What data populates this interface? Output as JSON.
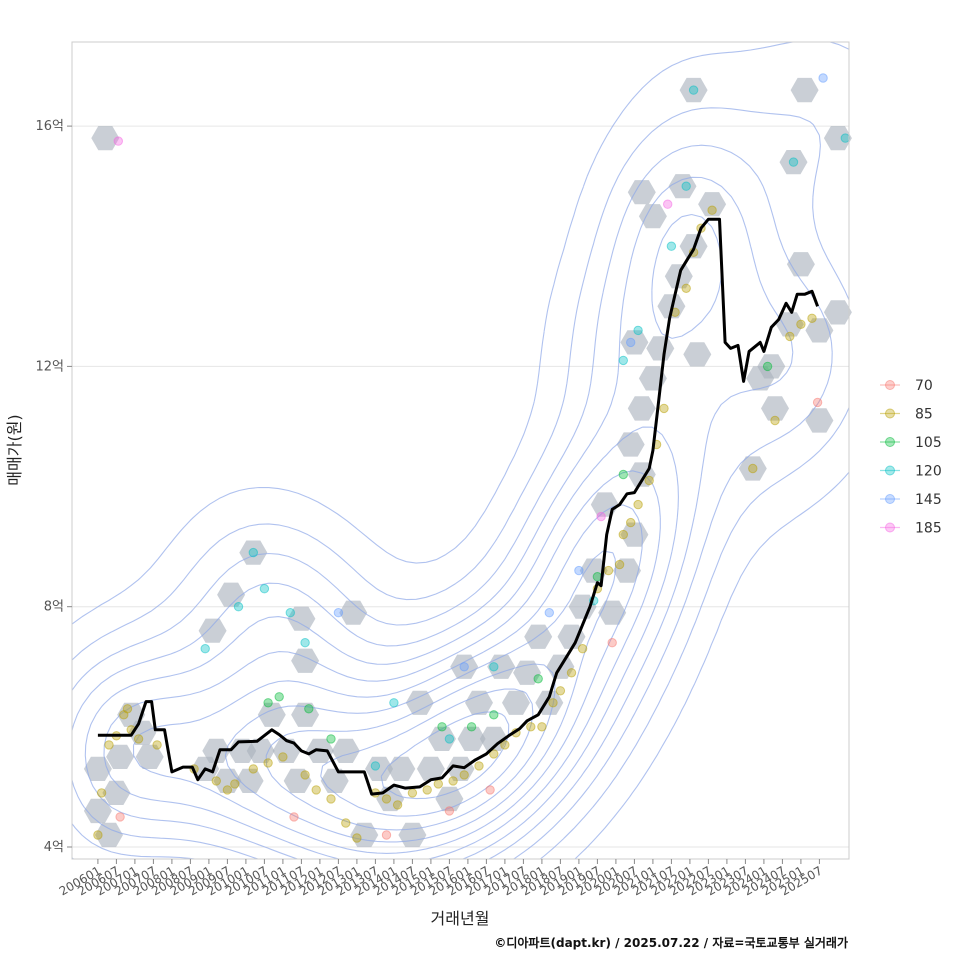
{
  "chart_data": {
    "type": "scatter",
    "xlabel": "거래년월",
    "ylabel": "매매가(원)",
    "caption": "©디아파트(dapt.kr) / 2025.07.22 / 자료=국토교통부 실거래가",
    "y_unit": "억",
    "ylim": [
      3.8,
      17.4
    ],
    "xlim": [
      2005.3,
      2026.3
    ],
    "y_ticks": [
      {
        "value": 4,
        "label": "4억"
      },
      {
        "value": 8,
        "label": "8억"
      },
      {
        "value": 12,
        "label": "12억"
      },
      {
        "value": 16,
        "label": "16억"
      }
    ],
    "x_ticks": [
      "200601",
      "200607",
      "200701",
      "200707",
      "200801",
      "200807",
      "200901",
      "200907",
      "201001",
      "201007",
      "201101",
      "201107",
      "201201",
      "201207",
      "201301",
      "201307",
      "201401",
      "201407",
      "201501",
      "201507",
      "201601",
      "201607",
      "201701",
      "201707",
      "201801",
      "201807",
      "201901",
      "201907",
      "202001",
      "202007",
      "202101",
      "202107",
      "202201",
      "202207",
      "202301",
      "202307",
      "202401",
      "202407",
      "202501",
      "202507"
    ],
    "legend": {
      "position": "right",
      "title": "",
      "entries": [
        {
          "label": "70",
          "color": "#f8766d"
        },
        {
          "label": "85",
          "color": "#b79f00"
        },
        {
          "label": "105",
          "color": "#00ba38"
        },
        {
          "label": "120",
          "color": "#00bfc4"
        },
        {
          "label": "145",
          "color": "#619cff"
        },
        {
          "label": "185",
          "color": "#f564e3"
        }
      ]
    },
    "trend_line": {
      "name": "moving average",
      "color": "#000000",
      "points": [
        [
          2006.0,
          5.86
        ],
        [
          2006.3,
          5.86
        ],
        [
          2006.7,
          5.86
        ],
        [
          2006.9,
          5.86
        ],
        [
          2007.1,
          6.05
        ],
        [
          2007.3,
          6.42
        ],
        [
          2007.45,
          6.42
        ],
        [
          2007.55,
          5.95
        ],
        [
          2007.8,
          5.95
        ],
        [
          2008.0,
          5.25
        ],
        [
          2008.3,
          5.33
        ],
        [
          2008.55,
          5.33
        ],
        [
          2008.7,
          5.12
        ],
        [
          2008.9,
          5.3
        ],
        [
          2009.1,
          5.25
        ],
        [
          2009.3,
          5.62
        ],
        [
          2009.6,
          5.62
        ],
        [
          2009.8,
          5.75
        ],
        [
          2010.3,
          5.76
        ],
        [
          2010.7,
          5.95
        ],
        [
          2010.9,
          5.87
        ],
        [
          2011.1,
          5.77
        ],
        [
          2011.3,
          5.73
        ],
        [
          2011.5,
          5.6
        ],
        [
          2011.7,
          5.55
        ],
        [
          2011.9,
          5.62
        ],
        [
          2012.2,
          5.6
        ],
        [
          2012.5,
          5.25
        ],
        [
          2013.2,
          5.25
        ],
        [
          2013.4,
          4.88
        ],
        [
          2013.7,
          4.9
        ],
        [
          2014.0,
          5.03
        ],
        [
          2014.3,
          4.98
        ],
        [
          2014.7,
          5.0
        ],
        [
          2015.0,
          5.12
        ],
        [
          2015.3,
          5.15
        ],
        [
          2015.6,
          5.35
        ],
        [
          2015.9,
          5.32
        ],
        [
          2016.2,
          5.45
        ],
        [
          2016.5,
          5.55
        ],
        [
          2016.8,
          5.72
        ],
        [
          2017.1,
          5.85
        ],
        [
          2017.4,
          5.97
        ],
        [
          2017.6,
          6.1
        ],
        [
          2017.9,
          6.2
        ],
        [
          2018.2,
          6.5
        ],
        [
          2018.4,
          6.9
        ],
        [
          2018.7,
          7.2
        ],
        [
          2018.9,
          7.4
        ],
        [
          2019.1,
          7.7
        ],
        [
          2019.3,
          8.0
        ],
        [
          2019.5,
          8.4
        ],
        [
          2019.6,
          8.35
        ],
        [
          2019.75,
          9.2
        ],
        [
          2019.9,
          9.62
        ],
        [
          2020.1,
          9.7
        ],
        [
          2020.3,
          9.88
        ],
        [
          2020.5,
          9.9
        ],
        [
          2020.7,
          10.1
        ],
        [
          2020.9,
          10.3
        ],
        [
          2021.0,
          10.6
        ],
        [
          2021.15,
          11.4
        ],
        [
          2021.3,
          12.2
        ],
        [
          2021.45,
          12.8
        ],
        [
          2021.6,
          13.2
        ],
        [
          2021.75,
          13.6
        ],
        [
          2021.9,
          13.75
        ],
        [
          2022.1,
          13.95
        ],
        [
          2022.3,
          14.3
        ],
        [
          2022.5,
          14.45
        ],
        [
          2022.8,
          14.45
        ],
        [
          2022.95,
          12.4
        ],
        [
          2023.1,
          12.3
        ],
        [
          2023.3,
          12.35
        ],
        [
          2023.45,
          11.75
        ],
        [
          2023.6,
          12.25
        ],
        [
          2023.9,
          12.4
        ],
        [
          2024.0,
          12.25
        ],
        [
          2024.2,
          12.65
        ],
        [
          2024.4,
          12.78
        ],
        [
          2024.6,
          13.05
        ],
        [
          2024.75,
          12.9
        ],
        [
          2024.9,
          13.2
        ],
        [
          2025.1,
          13.2
        ],
        [
          2025.3,
          13.25
        ],
        [
          2025.45,
          13.0
        ]
      ]
    },
    "series": [
      {
        "name": "70",
        "points": [
          [
            2006.6,
            4.5
          ],
          [
            2011.3,
            4.5
          ],
          [
            2013.8,
            4.2
          ],
          [
            2015.5,
            4.6
          ],
          [
            2016.6,
            4.95
          ],
          [
            2019.9,
            7.4
          ],
          [
            2025.45,
            11.4
          ]
        ]
      },
      {
        "name": "85",
        "points": [
          [
            2006.0,
            4.2
          ],
          [
            2006.1,
            4.9
          ],
          [
            2006.3,
            5.7
          ],
          [
            2006.5,
            5.85
          ],
          [
            2006.7,
            6.2
          ],
          [
            2006.8,
            6.3
          ],
          [
            2006.9,
            5.95
          ],
          [
            2007.1,
            5.8
          ],
          [
            2007.6,
            5.7
          ],
          [
            2008.6,
            5.3
          ],
          [
            2009.2,
            5.1
          ],
          [
            2009.5,
            4.95
          ],
          [
            2009.7,
            5.05
          ],
          [
            2010.2,
            5.3
          ],
          [
            2010.6,
            5.4
          ],
          [
            2011.0,
            5.5
          ],
          [
            2011.6,
            5.2
          ],
          [
            2011.9,
            4.95
          ],
          [
            2012.3,
            4.8
          ],
          [
            2012.7,
            4.4
          ],
          [
            2013.0,
            4.15
          ],
          [
            2013.5,
            4.9
          ],
          [
            2013.8,
            4.8
          ],
          [
            2014.1,
            4.7
          ],
          [
            2014.5,
            4.9
          ],
          [
            2014.9,
            4.95
          ],
          [
            2015.2,
            5.05
          ],
          [
            2015.6,
            5.1
          ],
          [
            2015.9,
            5.2
          ],
          [
            2016.3,
            5.35
          ],
          [
            2016.7,
            5.55
          ],
          [
            2017.0,
            5.7
          ],
          [
            2017.3,
            5.9
          ],
          [
            2017.7,
            6.0
          ],
          [
            2018.0,
            6.0
          ],
          [
            2018.3,
            6.4
          ],
          [
            2018.5,
            6.6
          ],
          [
            2018.8,
            6.9
          ],
          [
            2019.1,
            7.3
          ],
          [
            2019.5,
            8.3
          ],
          [
            2019.8,
            8.6
          ],
          [
            2020.1,
            8.7
          ],
          [
            2020.2,
            9.2
          ],
          [
            2020.4,
            9.4
          ],
          [
            2020.6,
            9.7
          ],
          [
            2020.9,
            10.1
          ],
          [
            2021.1,
            10.7
          ],
          [
            2021.3,
            11.3
          ],
          [
            2021.6,
            12.9
          ],
          [
            2021.9,
            13.3
          ],
          [
            2022.1,
            13.9
          ],
          [
            2022.3,
            14.3
          ],
          [
            2022.6,
            14.6
          ],
          [
            2023.7,
            10.3
          ],
          [
            2024.3,
            11.1
          ],
          [
            2024.7,
            12.5
          ],
          [
            2025.0,
            12.7
          ],
          [
            2025.3,
            12.8
          ]
        ]
      },
      {
        "name": "105",
        "points": [
          [
            2010.6,
            6.4
          ],
          [
            2010.9,
            6.5
          ],
          [
            2011.7,
            6.3
          ],
          [
            2012.3,
            5.8
          ],
          [
            2015.3,
            6.0
          ],
          [
            2016.1,
            6.0
          ],
          [
            2016.7,
            6.2
          ],
          [
            2017.9,
            6.8
          ],
          [
            2019.5,
            8.5
          ],
          [
            2020.2,
            10.2
          ],
          [
            2024.1,
            12.0
          ]
        ]
      },
      {
        "name": "120",
        "points": [
          [
            2008.9,
            7.3
          ],
          [
            2009.8,
            8.0
          ],
          [
            2010.2,
            8.9
          ],
          [
            2010.5,
            8.3
          ],
          [
            2011.2,
            7.9
          ],
          [
            2011.6,
            7.4
          ],
          [
            2013.5,
            5.35
          ],
          [
            2014.0,
            6.4
          ],
          [
            2015.5,
            5.8
          ],
          [
            2016.7,
            7.0
          ],
          [
            2019.4,
            8.1
          ],
          [
            2020.2,
            12.1
          ],
          [
            2020.6,
            12.6
          ],
          [
            2021.5,
            14.0
          ],
          [
            2021.9,
            15.0
          ],
          [
            2022.1,
            16.6
          ],
          [
            2024.8,
            15.4
          ],
          [
            2026.2,
            15.8
          ]
        ]
      },
      {
        "name": "145",
        "points": [
          [
            2012.5,
            7.9
          ],
          [
            2015.9,
            7.0
          ],
          [
            2018.2,
            7.9
          ],
          [
            2019.0,
            8.6
          ],
          [
            2020.4,
            12.4
          ],
          [
            2025.6,
            16.8
          ]
        ]
      },
      {
        "name": "185",
        "points": [
          [
            2006.55,
            15.75
          ],
          [
            2019.6,
            9.5
          ],
          [
            2021.4,
            14.7
          ]
        ]
      }
    ],
    "hexbins": [
      [
        2006.2,
        15.8
      ],
      [
        2006.0,
        5.3
      ],
      [
        2006.0,
        4.6
      ],
      [
        2006.3,
        4.2
      ],
      [
        2006.5,
        4.9
      ],
      [
        2006.6,
        5.5
      ],
      [
        2006.9,
        6.2
      ],
      [
        2007.2,
        5.9
      ],
      [
        2007.4,
        5.5
      ],
      [
        2008.9,
        5.3
      ],
      [
        2009.2,
        5.6
      ],
      [
        2009.5,
        5.1
      ],
      [
        2009.9,
        5.6
      ],
      [
        2010.1,
        5.1
      ],
      [
        2010.4,
        5.6
      ],
      [
        2010.7,
        6.2
      ],
      [
        2011.1,
        5.6
      ],
      [
        2011.4,
        5.1
      ],
      [
        2011.6,
        6.2
      ],
      [
        2012.0,
        5.6
      ],
      [
        2012.4,
        5.1
      ],
      [
        2012.7,
        5.6
      ],
      [
        2009.1,
        7.6
      ],
      [
        2009.6,
        8.2
      ],
      [
        2010.2,
        8.9
      ],
      [
        2011.5,
        7.8
      ],
      [
        2011.6,
        7.1
      ],
      [
        2012.9,
        7.9
      ],
      [
        2013.2,
        4.2
      ],
      [
        2013.6,
        5.3
      ],
      [
        2013.9,
        4.8
      ],
      [
        2014.2,
        5.3
      ],
      [
        2014.5,
        4.2
      ],
      [
        2014.7,
        6.4
      ],
      [
        2015.0,
        5.3
      ],
      [
        2015.3,
        5.8
      ],
      [
        2015.5,
        4.8
      ],
      [
        2015.8,
        5.3
      ],
      [
        2016.1,
        5.8
      ],
      [
        2016.3,
        6.4
      ],
      [
        2016.7,
        5.8
      ],
      [
        2015.9,
        7.0
      ],
      [
        2016.9,
        7.0
      ],
      [
        2017.3,
        6.4
      ],
      [
        2017.6,
        6.9
      ],
      [
        2017.9,
        7.5
      ],
      [
        2018.2,
        6.4
      ],
      [
        2018.5,
        7.0
      ],
      [
        2018.8,
        7.5
      ],
      [
        2019.1,
        8.0
      ],
      [
        2019.4,
        8.6
      ],
      [
        2019.7,
        9.7
      ],
      [
        2019.9,
        7.9
      ],
      [
        2020.3,
        8.6
      ],
      [
        2020.5,
        9.2
      ],
      [
        2020.7,
        10.2
      ],
      [
        2020.4,
        10.7
      ],
      [
        2020.7,
        11.3
      ],
      [
        2021.0,
        11.8
      ],
      [
        2021.2,
        12.3
      ],
      [
        2020.5,
        12.4
      ],
      [
        2021.0,
        14.5
      ],
      [
        2021.5,
        13.0
      ],
      [
        2021.7,
        13.5
      ],
      [
        2021.8,
        15.0
      ],
      [
        2022.1,
        14.0
      ],
      [
        2022.2,
        12.2
      ],
      [
        2022.1,
        16.6
      ],
      [
        2022.6,
        14.7
      ],
      [
        2020.7,
        14.9
      ],
      [
        2023.7,
        10.3
      ],
      [
        2024.3,
        11.3
      ],
      [
        2024.7,
        12.7
      ],
      [
        2024.8,
        15.4
      ],
      [
        2025.0,
        13.7
      ],
      [
        2025.1,
        16.6
      ],
      [
        2025.5,
        12.6
      ],
      [
        2025.5,
        11.1
      ],
      [
        2026.0,
        15.8
      ],
      [
        2026.0,
        12.9
      ],
      [
        2023.9,
        11.8
      ],
      [
        2024.2,
        12.0
      ]
    ]
  }
}
